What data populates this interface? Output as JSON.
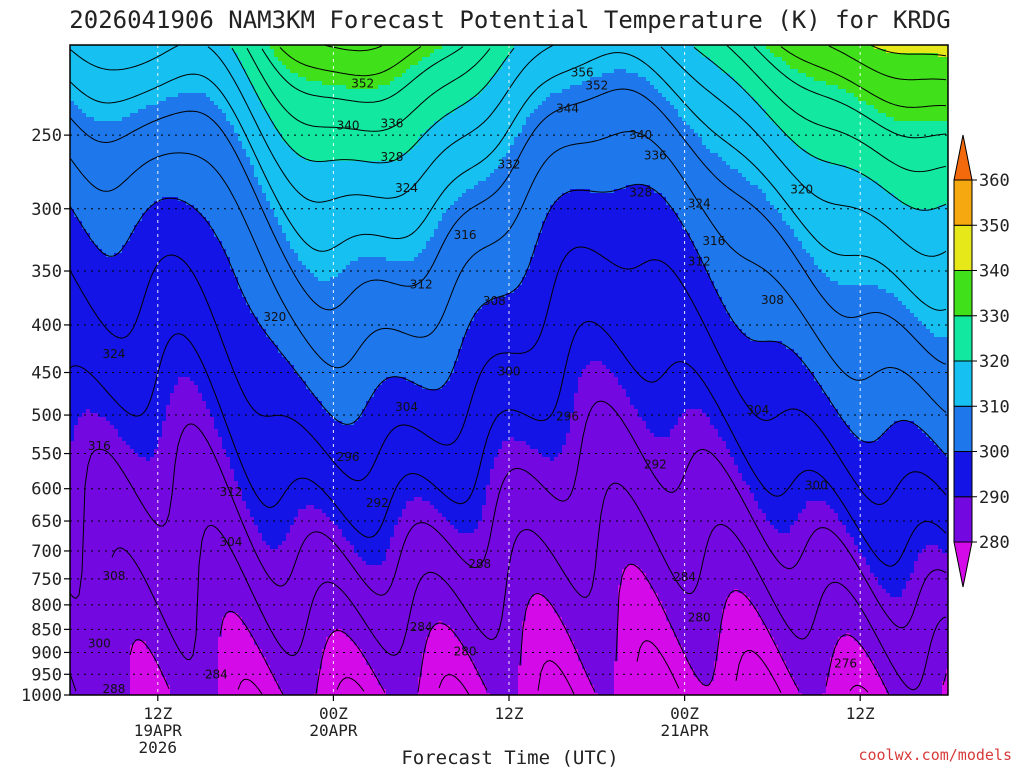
{
  "chart_data": {
    "type": "heatmap",
    "title": "2026041906 NAM3KM Forecast Potential Temperature (K) for KRDG",
    "xlabel": "Forecast Time (UTC)",
    "ylabel": "",
    "credit": "coolwx.com/models",
    "y_axis": {
      "scale": "log",
      "reversed": true,
      "range": [
        1000,
        200
      ],
      "ticks": [
        250,
        300,
        350,
        400,
        450,
        500,
        550,
        600,
        650,
        700,
        750,
        800,
        850,
        900,
        950,
        1000
      ]
    },
    "x_axis": {
      "range_hours": [
        0,
        60
      ],
      "ticks": [
        {
          "hour": 6,
          "lines": [
            "12Z",
            "19APR",
            "2026"
          ]
        },
        {
          "hour": 18,
          "lines": [
            "00Z",
            "20APR"
          ]
        },
        {
          "hour": 30,
          "lines": [
            "12Z"
          ]
        },
        {
          "hour": 42,
          "lines": [
            "00Z",
            "21APR"
          ]
        },
        {
          "hour": 54,
          "lines": [
            "12Z"
          ]
        }
      ]
    },
    "grid": true,
    "colorbar": {
      "placement": "right",
      "ticks": [
        280,
        290,
        300,
        310,
        320,
        330,
        340,
        350,
        360
      ],
      "bands": [
        {
          "from": 270,
          "to": 280,
          "color": "#d50ae8"
        },
        {
          "from": 280,
          "to": 290,
          "color": "#7408e0"
        },
        {
          "from": 290,
          "to": 300,
          "color": "#1414e6"
        },
        {
          "from": 300,
          "to": 310,
          "color": "#1f78eb"
        },
        {
          "from": 310,
          "to": 320,
          "color": "#16c0f0"
        },
        {
          "from": 320,
          "to": 330,
          "color": "#13e8a0"
        },
        {
          "from": 330,
          "to": 340,
          "color": "#40e01a"
        },
        {
          "from": 340,
          "to": 350,
          "color": "#e6e81a"
        },
        {
          "from": 350,
          "to": 360,
          "color": "#f5a810"
        },
        {
          "from": 360,
          "to": 370,
          "color": "#f26a0c"
        }
      ]
    },
    "ground_color": "#a0522d",
    "contour_labels": [
      {
        "value": "352",
        "hour": 20,
        "p": 220
      },
      {
        "value": "356",
        "hour": 35,
        "p": 214
      },
      {
        "value": "352",
        "hour": 36,
        "p": 221
      },
      {
        "value": "344",
        "hour": 34,
        "p": 234
      },
      {
        "value": "340",
        "hour": 19,
        "p": 244
      },
      {
        "value": "336",
        "hour": 22,
        "p": 243
      },
      {
        "value": "340",
        "hour": 39,
        "p": 250
      },
      {
        "value": "336",
        "hour": 40,
        "p": 263
      },
      {
        "value": "328",
        "hour": 22,
        "p": 264
      },
      {
        "value": "332",
        "hour": 30,
        "p": 269
      },
      {
        "value": "324",
        "hour": 23,
        "p": 285
      },
      {
        "value": "328",
        "hour": 39,
        "p": 288
      },
      {
        "value": "324",
        "hour": 43,
        "p": 296
      },
      {
        "value": "320",
        "hour": 50,
        "p": 286
      },
      {
        "value": "316",
        "hour": 27,
        "p": 320
      },
      {
        "value": "316",
        "hour": 44,
        "p": 325
      },
      {
        "value": "312",
        "hour": 43,
        "p": 342
      },
      {
        "value": "312",
        "hour": 24,
        "p": 362
      },
      {
        "value": "308",
        "hour": 29,
        "p": 377
      },
      {
        "value": "308",
        "hour": 48,
        "p": 376
      },
      {
        "value": "320",
        "hour": 14,
        "p": 392
      },
      {
        "value": "324",
        "hour": 3,
        "p": 430
      },
      {
        "value": "300",
        "hour": 30,
        "p": 449
      },
      {
        "value": "304",
        "hour": 23,
        "p": 490
      },
      {
        "value": "296",
        "hour": 34,
        "p": 502
      },
      {
        "value": "304",
        "hour": 47,
        "p": 494
      },
      {
        "value": "316",
        "hour": 2,
        "p": 540
      },
      {
        "value": "296",
        "hour": 19,
        "p": 555
      },
      {
        "value": "292",
        "hour": 40,
        "p": 565
      },
      {
        "value": "312",
        "hour": 11,
        "p": 605
      },
      {
        "value": "292",
        "hour": 21,
        "p": 622
      },
      {
        "value": "300",
        "hour": 51,
        "p": 595
      },
      {
        "value": "304",
        "hour": 11,
        "p": 685
      },
      {
        "value": "288",
        "hour": 28,
        "p": 723
      },
      {
        "value": "308",
        "hour": 3,
        "p": 745
      },
      {
        "value": "284",
        "hour": 42,
        "p": 747
      },
      {
        "value": "280",
        "hour": 43,
        "p": 825
      },
      {
        "value": "284",
        "hour": 24,
        "p": 845
      },
      {
        "value": "280",
        "hour": 27,
        "p": 898
      },
      {
        "value": "300",
        "hour": 2,
        "p": 880
      },
      {
        "value": "276",
        "hour": 53,
        "p": 925
      },
      {
        "value": "284",
        "hour": 10,
        "p": 950
      },
      {
        "value": "288",
        "hour": 3,
        "p": 985
      }
    ]
  }
}
